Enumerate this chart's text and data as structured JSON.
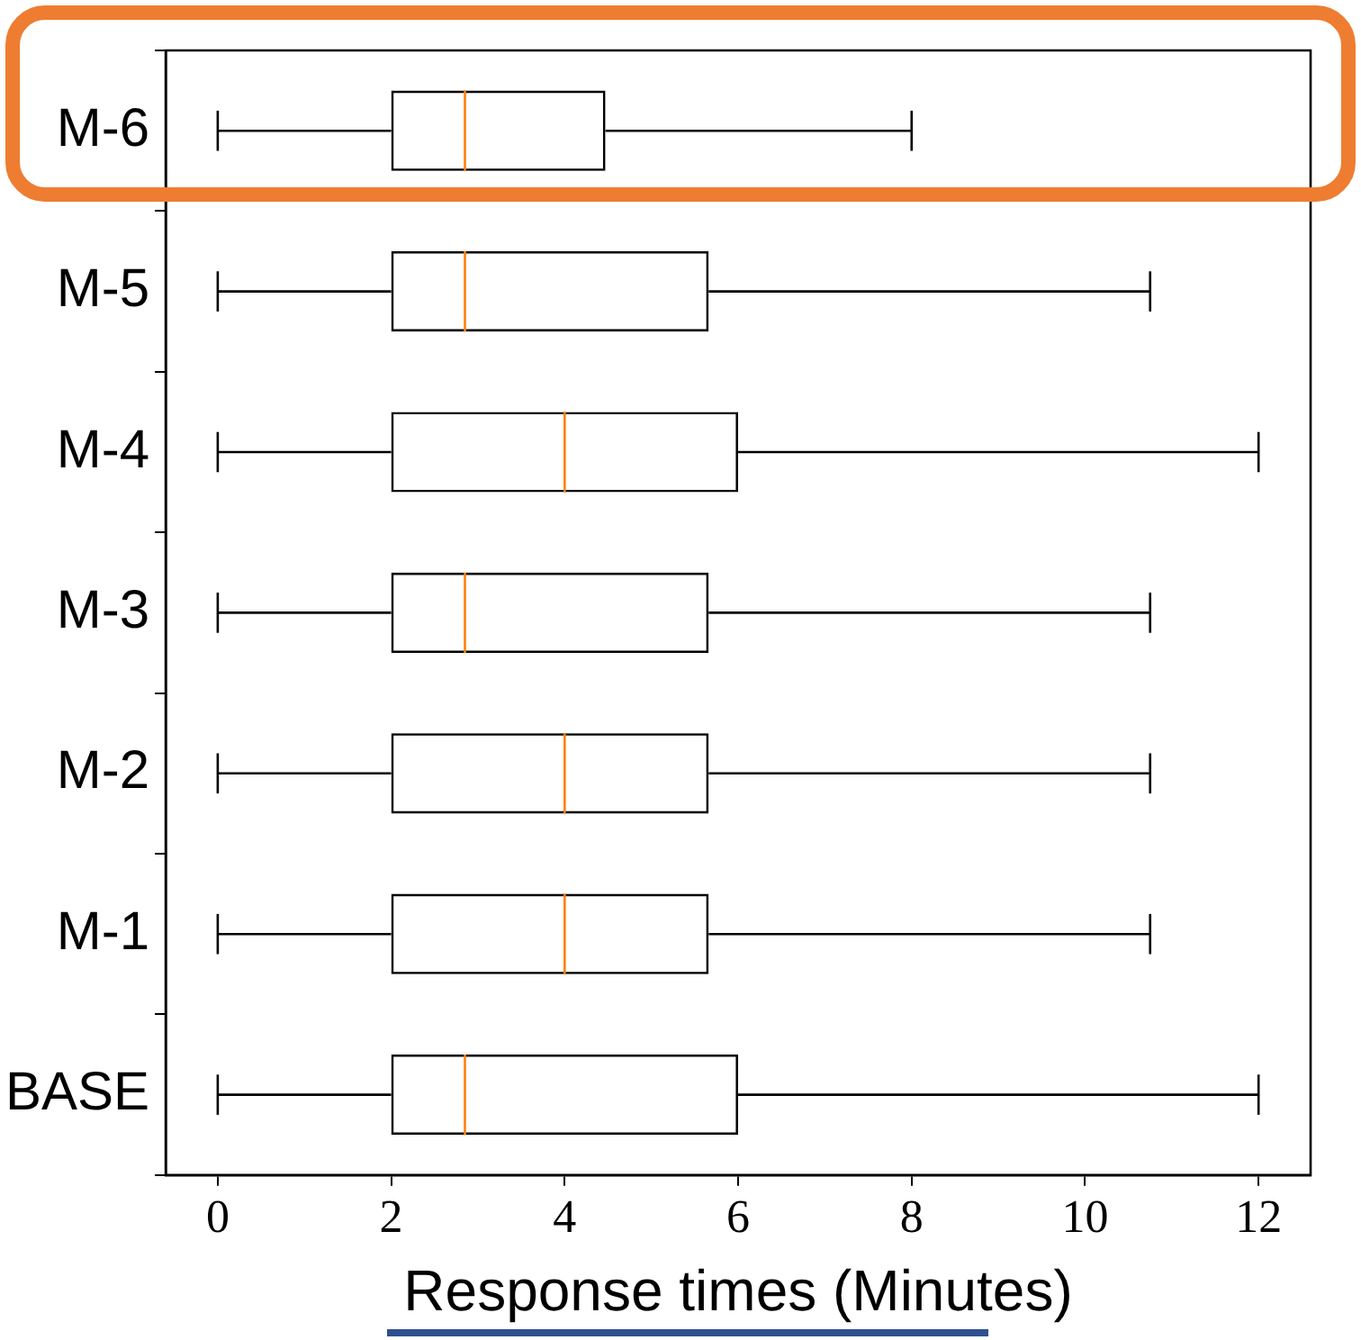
{
  "chart_data": {
    "type": "box",
    "orientation": "horizontal",
    "xlabel": "Response times (Minutes)",
    "categories": [
      "M-6",
      "M-5",
      "M-4",
      "M-3",
      "M-2",
      "M-1",
      "BASE"
    ],
    "boxes": [
      {
        "low": 0,
        "q1": 2,
        "median": 2.85,
        "q3": 4.47,
        "high": 8
      },
      {
        "low": 0,
        "q1": 2,
        "median": 2.85,
        "q3": 5.66,
        "high": 10.75
      },
      {
        "low": 0,
        "q1": 2,
        "median": 4,
        "q3": 6,
        "high": 12
      },
      {
        "low": 0,
        "q1": 2,
        "median": 2.85,
        "q3": 5.66,
        "high": 10.75
      },
      {
        "low": 0,
        "q1": 2,
        "median": 4,
        "q3": 5.66,
        "high": 10.75
      },
      {
        "low": 0,
        "q1": 2,
        "median": 4,
        "q3": 5.66,
        "high": 10.75
      },
      {
        "low": 0,
        "q1": 2,
        "median": 2.85,
        "q3": 6,
        "high": 12
      }
    ],
    "xlim": [
      -0.6,
      12.6
    ],
    "xticks": [
      0,
      2,
      4,
      6,
      8,
      10,
      12
    ],
    "grid": false,
    "legend": false
  }
}
